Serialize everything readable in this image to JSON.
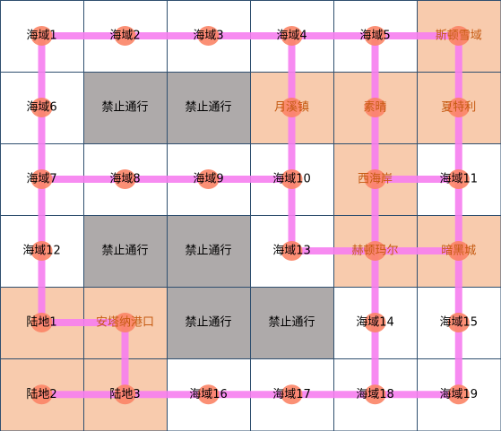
{
  "grid": {
    "rows": [
      [
        {
          "label": "海域1",
          "fill": "#ffffff",
          "color": "#000000"
        },
        {
          "label": "海域2",
          "fill": "#ffffff",
          "color": "#000000"
        },
        {
          "label": "海域3",
          "fill": "#ffffff",
          "color": "#000000"
        },
        {
          "label": "海域4",
          "fill": "#ffffff",
          "color": "#000000"
        },
        {
          "label": "海域5",
          "fill": "#ffffff",
          "color": "#000000"
        },
        {
          "label": "斯顿雪域",
          "fill": "#f8cbad",
          "color": "#c55a11"
        }
      ],
      [
        {
          "label": "海域6",
          "fill": "#ffffff",
          "color": "#000000"
        },
        {
          "label": "禁止通行",
          "fill": "#aeaaaa",
          "color": "#000000"
        },
        {
          "label": "禁止通行",
          "fill": "#aeaaaa",
          "color": "#000000"
        },
        {
          "label": "月溪镇",
          "fill": "#f8cbad",
          "color": "#c55a11"
        },
        {
          "label": "素晴",
          "fill": "#f8cbad",
          "color": "#c55a11"
        },
        {
          "label": "夏特利",
          "fill": "#f8cbad",
          "color": "#c55a11"
        }
      ],
      [
        {
          "label": "海域7",
          "fill": "#ffffff",
          "color": "#000000"
        },
        {
          "label": "海域8",
          "fill": "#ffffff",
          "color": "#000000"
        },
        {
          "label": "海域9",
          "fill": "#ffffff",
          "color": "#000000"
        },
        {
          "label": "海域10",
          "fill": "#ffffff",
          "color": "#000000"
        },
        {
          "label": "西海岸",
          "fill": "#f8cbad",
          "color": "#c55a11"
        },
        {
          "label": "海域11",
          "fill": "#ffffff",
          "color": "#000000"
        }
      ],
      [
        {
          "label": "海域12",
          "fill": "#ffffff",
          "color": "#000000"
        },
        {
          "label": "禁止通行",
          "fill": "#aeaaaa",
          "color": "#000000"
        },
        {
          "label": "禁止通行",
          "fill": "#aeaaaa",
          "color": "#000000"
        },
        {
          "label": "海域13",
          "fill": "#ffffff",
          "color": "#000000"
        },
        {
          "label": "赫顿玛尔",
          "fill": "#f8cbad",
          "color": "#c55a11"
        },
        {
          "label": "暗黑城",
          "fill": "#f8cbad",
          "color": "#c55a11"
        }
      ],
      [
        {
          "label": "陆地1",
          "fill": "#f8cbad",
          "color": "#000000"
        },
        {
          "label": "安塔纳港口",
          "fill": "#f8cbad",
          "color": "#c55a11"
        },
        {
          "label": "禁止通行",
          "fill": "#aeaaaa",
          "color": "#000000"
        },
        {
          "label": "禁止通行",
          "fill": "#aeaaaa",
          "color": "#000000"
        },
        {
          "label": "海域14",
          "fill": "#ffffff",
          "color": "#000000"
        },
        {
          "label": "海域15",
          "fill": "#ffffff",
          "color": "#000000"
        }
      ],
      [
        {
          "label": "陆地2",
          "fill": "#f8cbad",
          "color": "#000000"
        },
        {
          "label": "陆地3",
          "fill": "#f8cbad",
          "color": "#000000"
        },
        {
          "label": "海域16",
          "fill": "#ffffff",
          "color": "#000000"
        },
        {
          "label": "海域17",
          "fill": "#ffffff",
          "color": "#000000"
        },
        {
          "label": "海域18",
          "fill": "#ffffff",
          "color": "#000000"
        },
        {
          "label": "海域19",
          "fill": "#ffffff",
          "color": "#000000"
        }
      ]
    ]
  }
}
